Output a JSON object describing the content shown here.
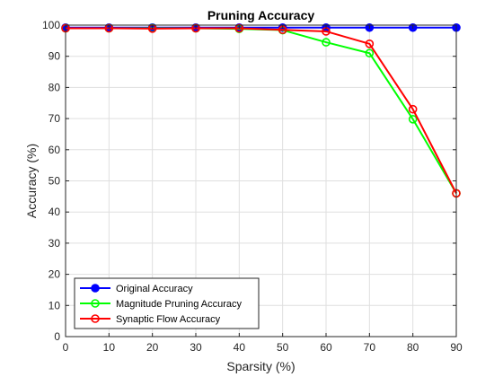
{
  "chart_data": {
    "type": "line",
    "title": "Pruning Accuracy",
    "xlabel": "Sparsity (%)",
    "ylabel": "Accuracy (%)",
    "xlim": [
      0,
      90
    ],
    "ylim": [
      0,
      100
    ],
    "x_ticks": [
      0,
      10,
      20,
      30,
      40,
      50,
      60,
      70,
      80,
      90
    ],
    "y_ticks": [
      0,
      10,
      20,
      30,
      40,
      50,
      60,
      70,
      80,
      90,
      100
    ],
    "grid": true,
    "legend_position": "bottom-left",
    "x": [
      0,
      10,
      20,
      30,
      40,
      50,
      60,
      70,
      80,
      90
    ],
    "series": [
      {
        "name": "Original Accuracy",
        "color": "#0000ff",
        "marker": "filled-circle",
        "values": [
          99.2,
          99.2,
          99.2,
          99.2,
          99.2,
          99.2,
          99.2,
          99.2,
          99.2,
          99.2
        ]
      },
      {
        "name": "Magnitude Pruning Accuracy",
        "color": "#00ff00",
        "marker": "open-circle",
        "values": [
          99.0,
          99.0,
          99.0,
          99.0,
          98.8,
          98.4,
          94.5,
          91.0,
          69.8,
          46.0
        ]
      },
      {
        "name": "Synaptic Flow Accuracy",
        "color": "#ff0000",
        "marker": "open-circle",
        "values": [
          99.0,
          99.0,
          98.9,
          99.0,
          99.0,
          98.5,
          98.0,
          94.0,
          73.0,
          46.0
        ]
      }
    ]
  }
}
